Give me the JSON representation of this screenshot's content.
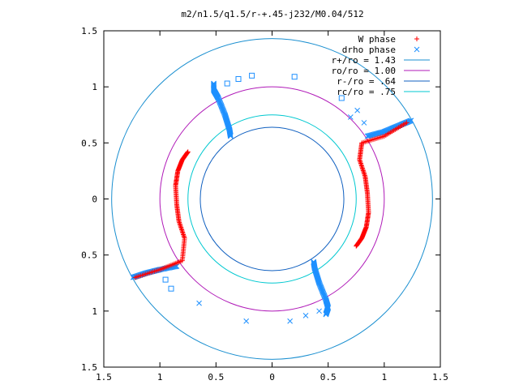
{
  "chart_data": {
    "type": "scatter",
    "title": "m2/n1.5/q1.5/r-+.45-j232/M0.04/512",
    "xlabel": "",
    "ylabel": "",
    "xlim": [
      -1.5,
      1.5
    ],
    "ylim": [
      -1.5,
      1.5
    ],
    "x_ticks": [
      "1.5",
      "1",
      "0.5",
      "0",
      "0.5",
      "1",
      "1.5"
    ],
    "y_ticks": [
      "1.5",
      "1",
      "0.5",
      "0",
      "0.5",
      "1",
      "1.5"
    ],
    "x_tick_values": [
      -1.5,
      -1,
      -0.5,
      0,
      0.5,
      1,
      1.5
    ],
    "y_tick_values": [
      1.5,
      1,
      0.5,
      0,
      -0.5,
      -1,
      -1.5
    ],
    "grid": false,
    "legend_position": "top-right",
    "legend": [
      {
        "label": "W phase",
        "color": "#ff0000",
        "marker": "plus"
      },
      {
        "label": "drho phase",
        "color": "#1e90ff",
        "marker": "cross"
      },
      {
        "label": "r+/ro = 1.43",
        "color": "#1a8fd0",
        "marker": "line"
      },
      {
        "label": "ro/ro = 1.00",
        "color": "#b01ab8",
        "marker": "line"
      },
      {
        "label": "r-/ro = .64",
        "color": "#1060c0",
        "marker": "line"
      },
      {
        "label": "rc/ro = .75",
        "color": "#00c8d0",
        "marker": "line"
      }
    ],
    "circles": [
      {
        "name": "r+/ro = 1.43",
        "r": 1.43,
        "color": "#1a8fd0"
      },
      {
        "name": "ro/ro = 1.00",
        "r": 1.0,
        "color": "#b01ab8"
      },
      {
        "name": "r-/ro = .64",
        "r": 0.64,
        "color": "#1060c0"
      },
      {
        "name": "rc/ro = .75",
        "r": 0.75,
        "color": "#00c8d0"
      }
    ],
    "w_phase_arms": [
      [
        [
          -0.75,
          0.42
        ],
        [
          -0.8,
          0.35
        ],
        [
          -0.84,
          0.25
        ],
        [
          -0.86,
          0.12
        ],
        [
          -0.85,
          -0.05
        ],
        [
          -0.83,
          -0.2
        ],
        [
          -0.78,
          -0.35
        ],
        [
          -0.8,
          -0.55
        ],
        [
          -1.0,
          -0.63
        ],
        [
          -1.22,
          -0.7
        ]
      ],
      [
        [
          0.75,
          -0.42
        ],
        [
          0.8,
          -0.35
        ],
        [
          0.84,
          -0.25
        ],
        [
          0.86,
          -0.12
        ],
        [
          0.85,
          0.05
        ],
        [
          0.83,
          0.2
        ],
        [
          0.78,
          0.35
        ],
        [
          0.8,
          0.5
        ],
        [
          1.0,
          0.56
        ],
        [
          1.2,
          0.68
        ]
      ]
    ],
    "drho_phase_arms": [
      [
        [
          -0.37,
          0.56
        ],
        [
          -0.38,
          0.62
        ],
        [
          -0.42,
          0.75
        ],
        [
          -0.48,
          0.9
        ],
        [
          -0.52,
          0.97
        ],
        [
          -0.52,
          1.03
        ]
      ],
      [
        [
          0.37,
          -0.56
        ],
        [
          0.38,
          -0.62
        ],
        [
          0.42,
          -0.75
        ],
        [
          0.48,
          -0.9
        ],
        [
          0.5,
          -0.97
        ],
        [
          0.48,
          -1.03
        ]
      ],
      [
        [
          -0.85,
          -0.6
        ],
        [
          -1.0,
          -0.63
        ],
        [
          -1.12,
          -0.66
        ],
        [
          -1.24,
          -0.7
        ]
      ],
      [
        [
          0.85,
          0.56
        ],
        [
          1.0,
          0.6
        ],
        [
          1.12,
          0.65
        ],
        [
          1.24,
          0.7
        ]
      ]
    ],
    "drho_scattered_squares": [
      [
        -0.4,
        1.03
      ],
      [
        -0.3,
        1.07
      ],
      [
        -0.18,
        1.1
      ],
      [
        0.2,
        1.09
      ],
      [
        0.62,
        0.9
      ],
      [
        -0.95,
        -0.72
      ],
      [
        -0.9,
        -0.8
      ]
    ],
    "drho_scattered_crosses": [
      [
        0.76,
        0.79
      ],
      [
        0.7,
        0.73
      ],
      [
        0.82,
        0.68
      ],
      [
        -0.65,
        -0.93
      ],
      [
        -0.23,
        -1.09
      ],
      [
        0.16,
        -1.09
      ],
      [
        0.3,
        -1.04
      ],
      [
        0.42,
        -1.0
      ]
    ]
  }
}
